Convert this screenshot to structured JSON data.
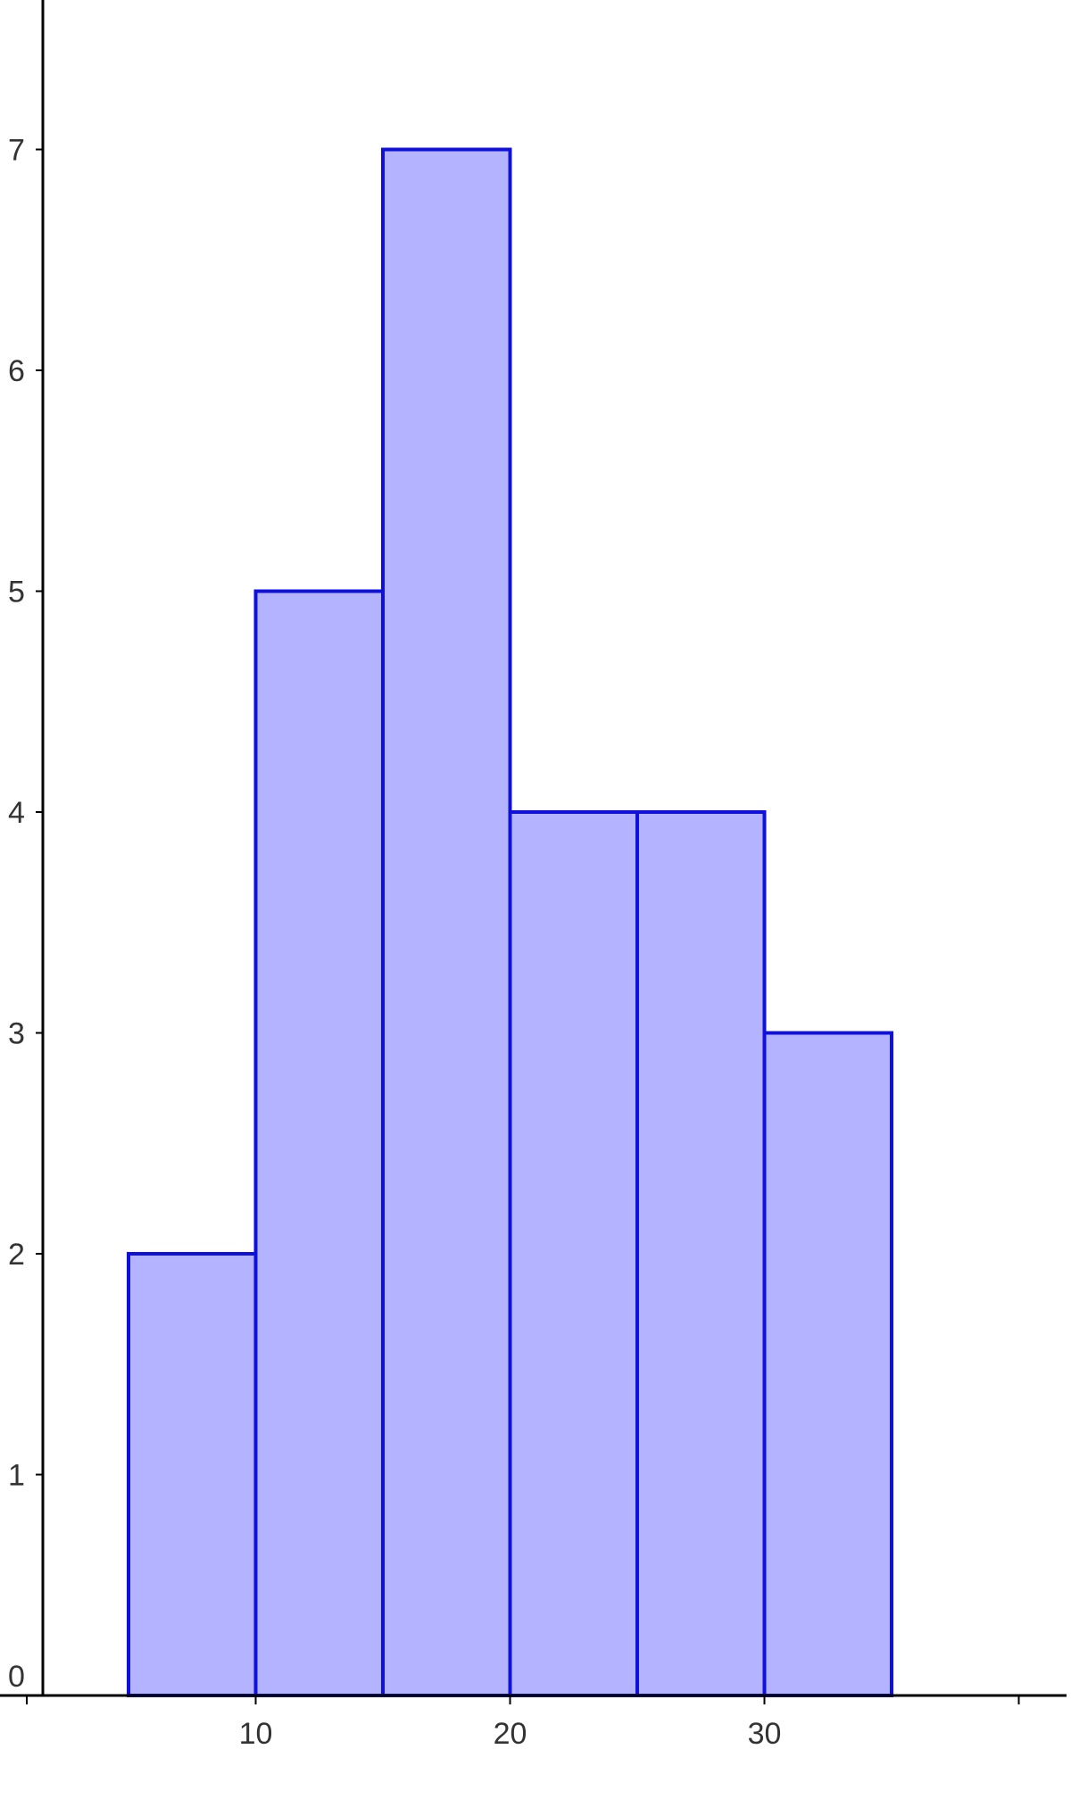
{
  "chart_data": {
    "type": "bar",
    "subtype": "histogram",
    "title": "",
    "xlabel": "",
    "ylabel": "",
    "bins": [
      {
        "start": 5,
        "end": 10,
        "value": 2
      },
      {
        "start": 10,
        "end": 15,
        "value": 5
      },
      {
        "start": 15,
        "end": 20,
        "value": 7
      },
      {
        "start": 20,
        "end": 25,
        "value": 4
      },
      {
        "start": 25,
        "end": 30,
        "value": 4
      },
      {
        "start": 30,
        "end": 35,
        "value": 3
      }
    ],
    "xlim": [
      0.5,
      40.5
    ],
    "ylim": [
      0,
      7.7
    ],
    "x_ticks": [
      10,
      20,
      30
    ],
    "x_tick_labels": [
      "10",
      "20",
      "30"
    ],
    "x_minor_ticks": [
      1,
      40
    ],
    "y_ticks": [
      0,
      1,
      2,
      3,
      4,
      5,
      6,
      7
    ],
    "y_tick_labels": [
      "0",
      "1",
      "2",
      "3",
      "4",
      "5",
      "6",
      "7"
    ],
    "grid": false,
    "legend": "none",
    "colors": {
      "bar_fill": "#b3b3ff",
      "bar_stroke": "#0f10dc",
      "axis": "#000000",
      "tick_text": "#333333"
    }
  }
}
